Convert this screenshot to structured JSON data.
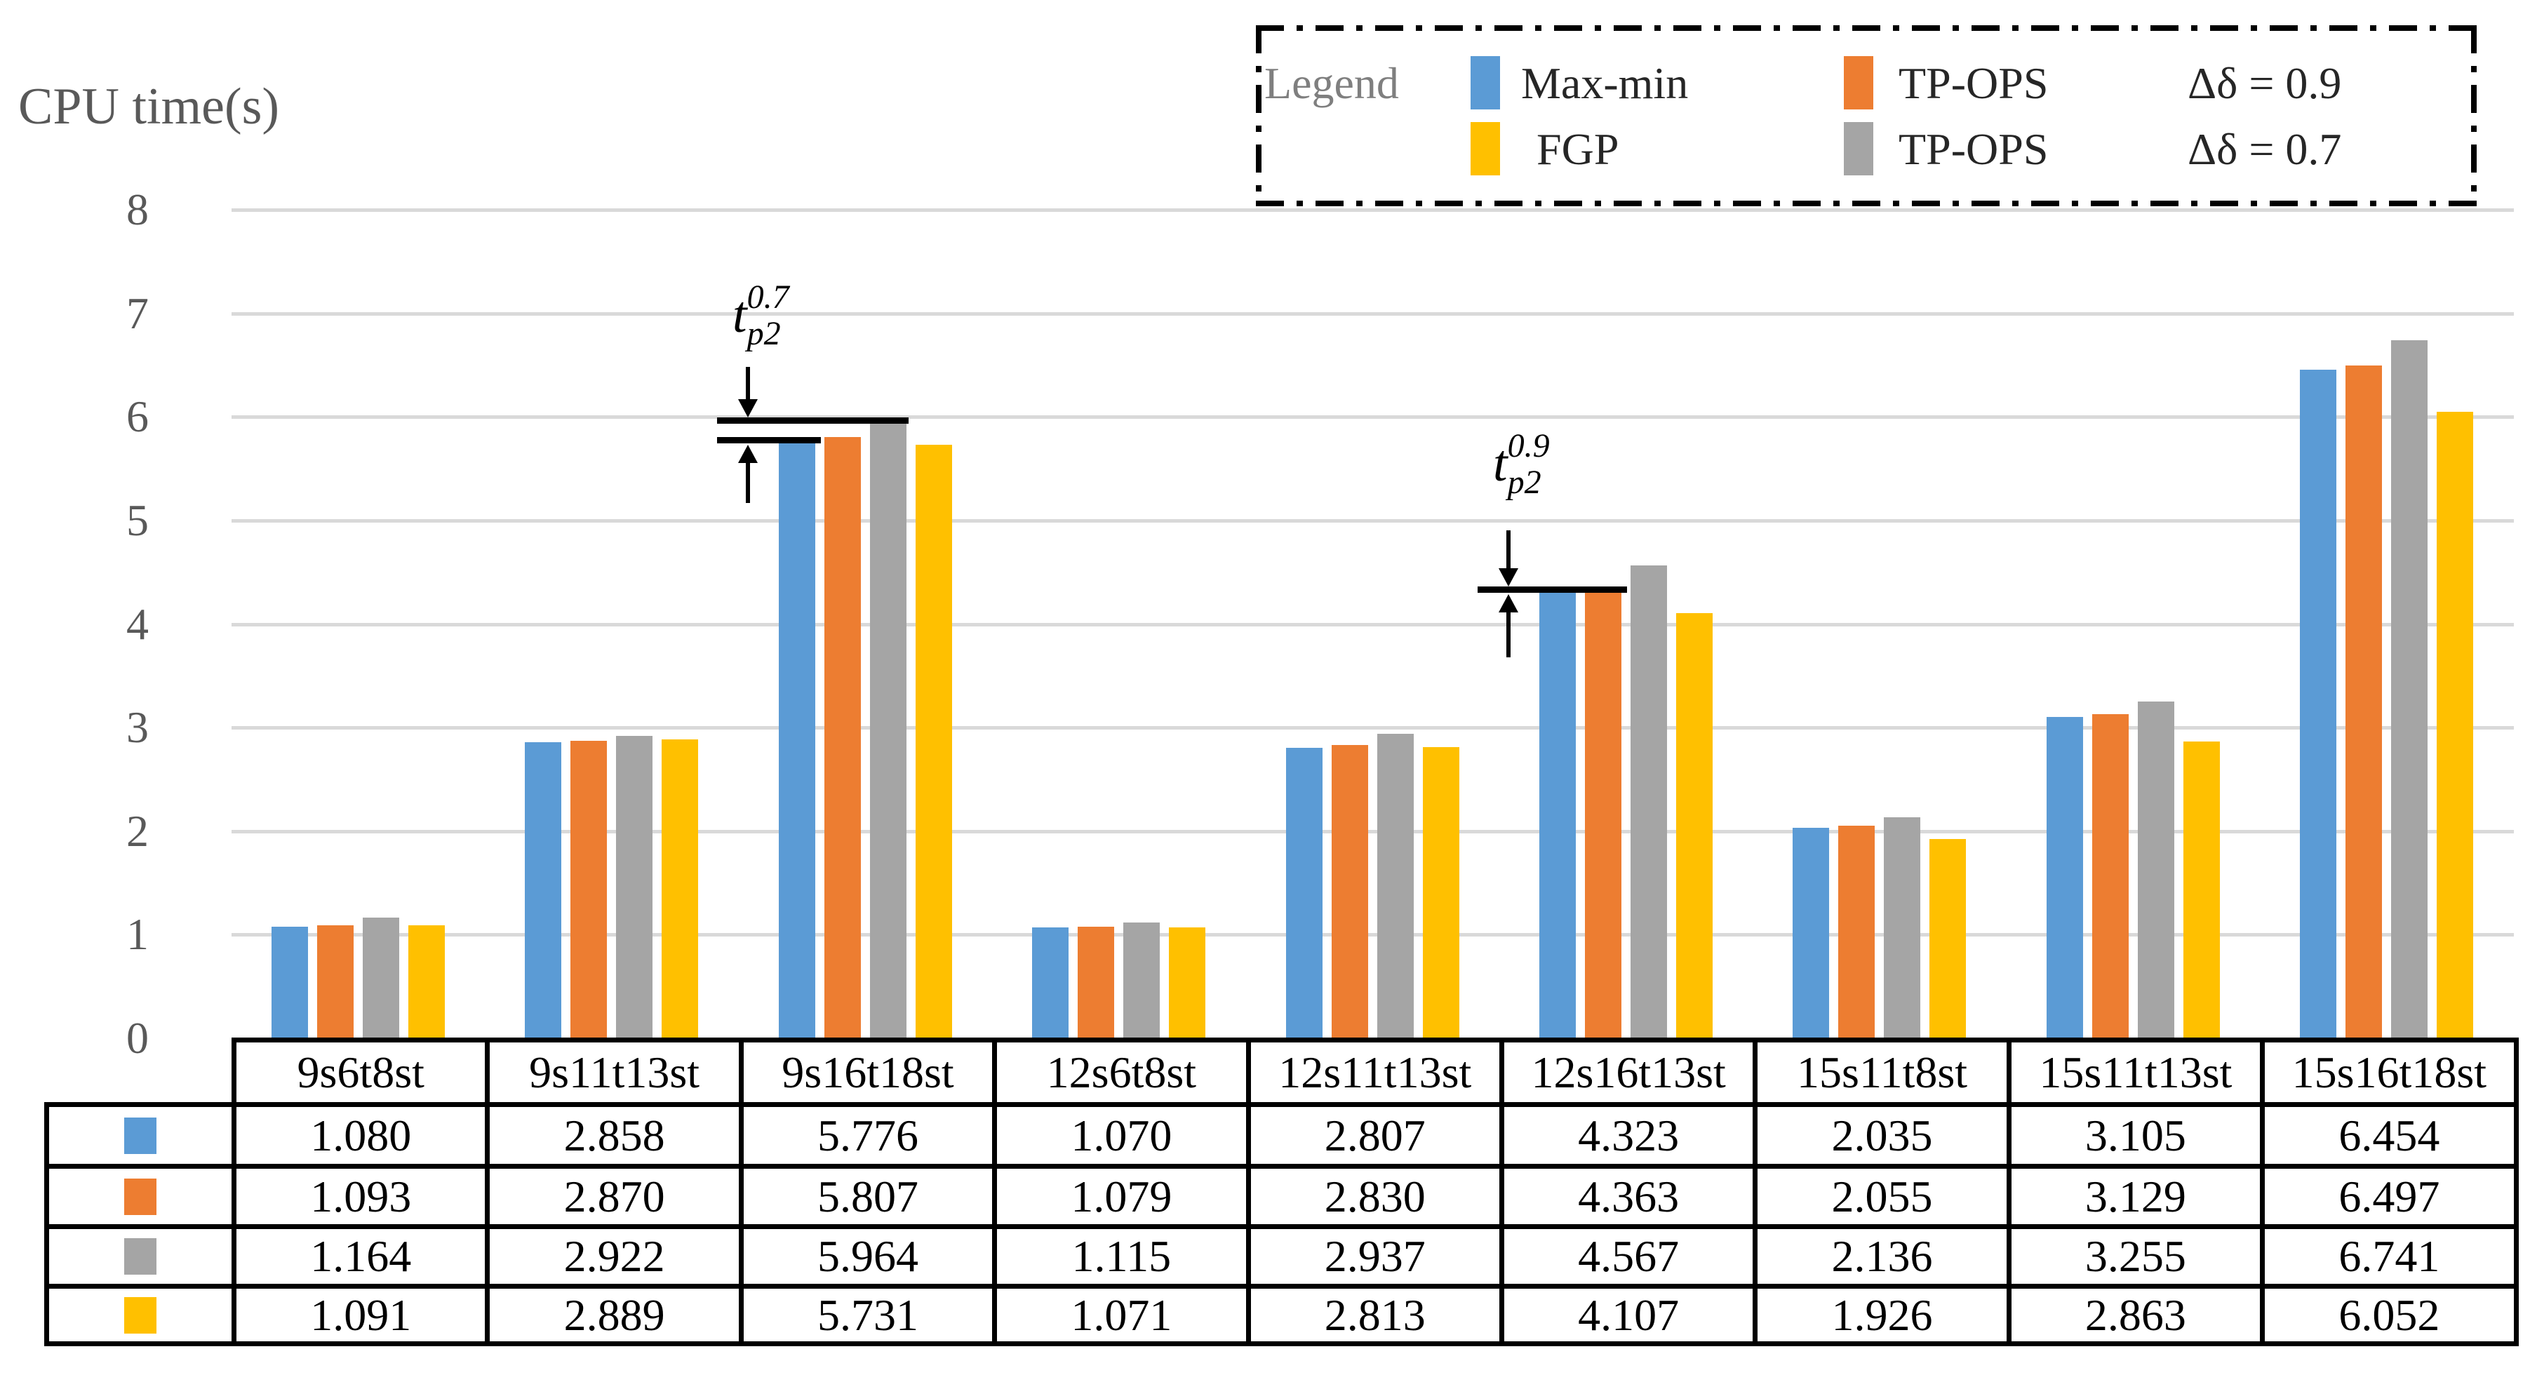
{
  "page": {
    "axis_title": "CPU time(s)"
  },
  "legend": {
    "label": "Legend",
    "entries": [
      {
        "name": "Max-min",
        "color": "#5B9BD5",
        "delta": ""
      },
      {
        "name": "TP-OPS",
        "color": "#ED7D31",
        "delta": "Δδ = 0.9"
      },
      {
        "name": "FGP",
        "color": "#FFC000",
        "delta": ""
      },
      {
        "name": "TP-OPS",
        "color": "#A5A5A5",
        "delta": "Δδ = 0.7"
      }
    ]
  },
  "annotations": [
    {
      "base": "t",
      "sup": "0.7",
      "sub": "p2",
      "target_group": "9s16t18st"
    },
    {
      "base": "t",
      "sup": "0.9",
      "sub": "p2",
      "target_group": "12s16t13st"
    }
  ],
  "chart_data": {
    "type": "bar",
    "title": "",
    "ylabel": "CPU time(s)",
    "xlabel": "",
    "ylim": [
      0,
      8
    ],
    "yticks": [
      "0",
      "1",
      "2",
      "3",
      "4",
      "5",
      "6",
      "7",
      "8"
    ],
    "grid": true,
    "legend_position": "top-right",
    "categories": [
      "9s6t8st",
      "9s11t13st",
      "9s16t18st",
      "12s6t8st",
      "12s11t13st",
      "12s16t13st",
      "15s11t8st",
      "15s11t13st",
      "15s16t18st"
    ],
    "series": [
      {
        "name": "Max-min",
        "color": "#5B9BD5",
        "values": [
          1.08,
          2.858,
          5.776,
          1.07,
          2.807,
          4.323,
          2.035,
          3.105,
          6.454
        ],
        "values_display": [
          "1.080",
          "2.858",
          "5.776",
          "1.070",
          "2.807",
          "4.323",
          "2.035",
          "3.105",
          "6.454"
        ]
      },
      {
        "name": "TP-OPS Δδ = 0.9",
        "color": "#ED7D31",
        "values": [
          1.093,
          2.87,
          5.807,
          1.079,
          2.83,
          4.363,
          2.055,
          3.129,
          6.497
        ],
        "values_display": [
          "1.093",
          "2.870",
          "5.807",
          "1.079",
          "2.830",
          "4.363",
          "2.055",
          "3.129",
          "6.497"
        ]
      },
      {
        "name": "TP-OPS Δδ = 0.7",
        "color": "#A5A5A5",
        "values": [
          1.164,
          2.922,
          5.964,
          1.115,
          2.937,
          4.567,
          2.136,
          3.255,
          6.741
        ],
        "values_display": [
          "1.164",
          "2.922",
          "5.964",
          "1.115",
          "2.937",
          "4.567",
          "2.136",
          "3.255",
          "6.741"
        ]
      },
      {
        "name": "FGP",
        "color": "#FFC000",
        "values": [
          1.091,
          2.889,
          5.731,
          1.071,
          2.813,
          4.107,
          1.926,
          2.863,
          6.052
        ],
        "values_display": [
          "1.091",
          "2.889",
          "5.731",
          "1.071",
          "2.813",
          "4.107",
          "1.926",
          "2.863",
          "6.052"
        ]
      }
    ]
  }
}
